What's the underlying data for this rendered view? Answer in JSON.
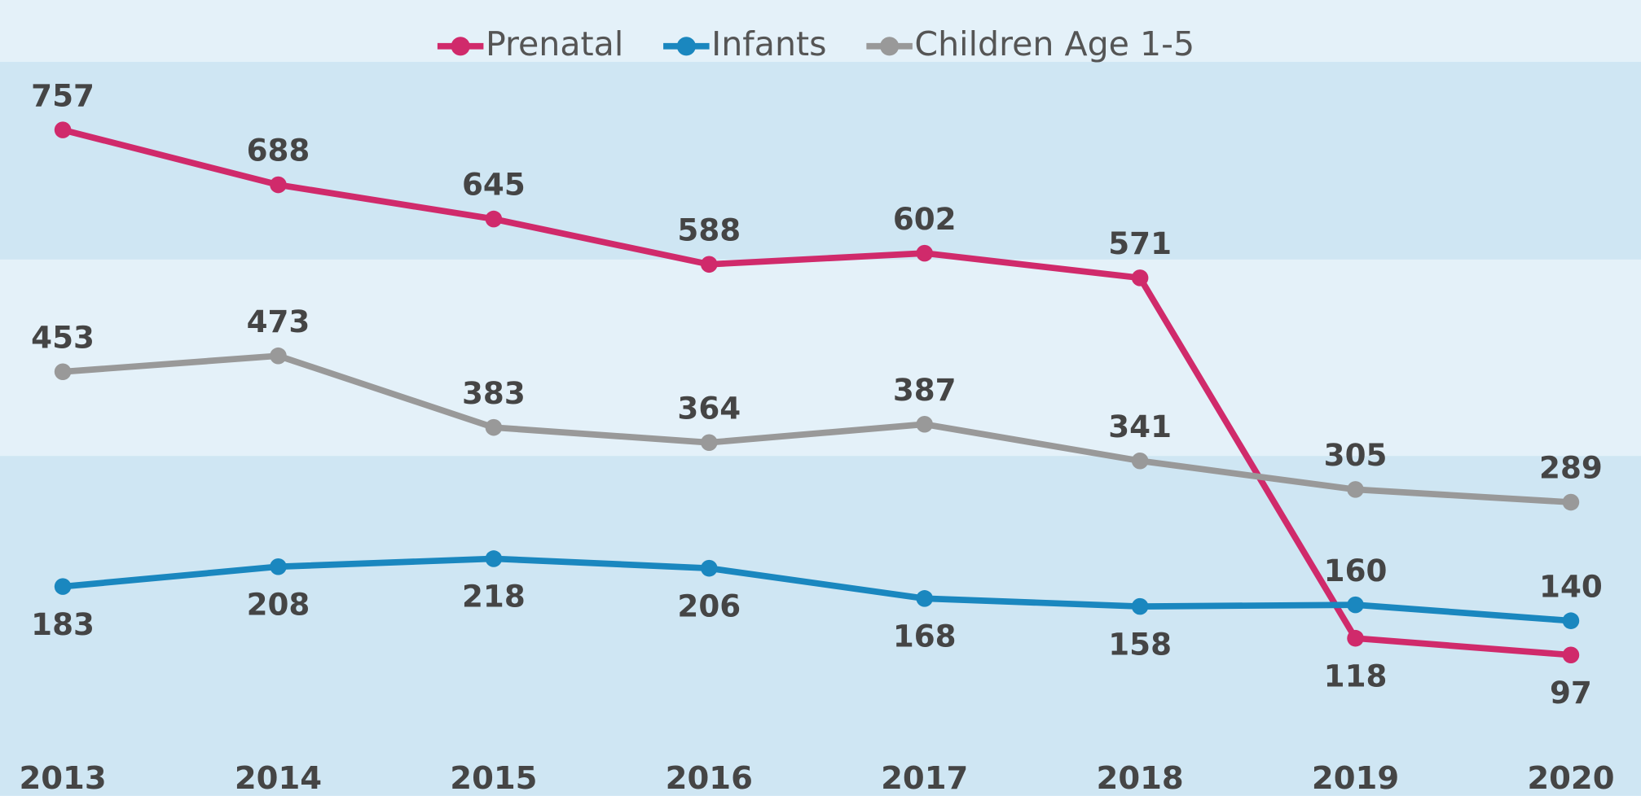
{
  "chart_data": {
    "type": "line",
    "categories": [
      "2013",
      "2014",
      "2015",
      "2016",
      "2017",
      "2018",
      "2019",
      "2020"
    ],
    "series": [
      {
        "name": "Prenatal",
        "color": "#d02a6b",
        "values": [
          757,
          688,
          645,
          588,
          602,
          571,
          118,
          97
        ]
      },
      {
        "name": "Infants",
        "color": "#1a87bf",
        "values": [
          183,
          208,
          218,
          206,
          168,
          158,
          160,
          140
        ]
      },
      {
        "name": "Children Age 1-5",
        "color": "#999999",
        "values": [
          453,
          473,
          383,
          364,
          387,
          341,
          305,
          289
        ]
      }
    ],
    "ylim": [
      -80,
      920
    ],
    "legend": "top"
  }
}
